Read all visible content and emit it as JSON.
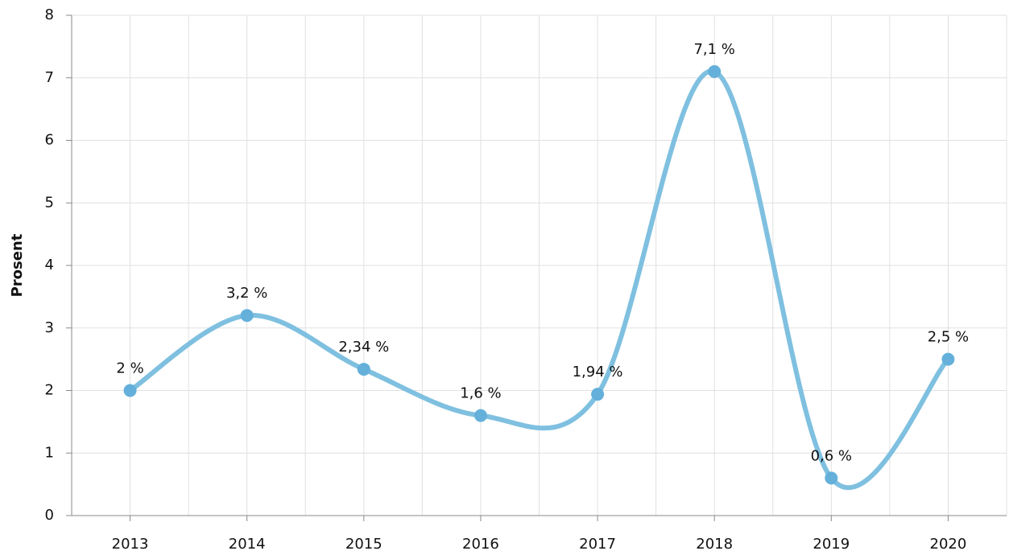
{
  "chart_data": {
    "type": "line",
    "y_label": "Prosent",
    "categories": [
      "2013",
      "2014",
      "2015",
      "2016",
      "2017",
      "2018",
      "2019",
      "2020"
    ],
    "values": [
      2,
      3.2,
      2.34,
      1.6,
      1.94,
      7.1,
      0.6,
      2.5
    ],
    "value_labels": [
      "2 %",
      "3,2 %",
      "2,34 %",
      "1,6 %",
      "1,94 %",
      "7,1 %",
      "0,6 %",
      "2,5 %"
    ],
    "color": "#7fc0e0",
    "marker_color": "#64b0da",
    "ylim": [
      0,
      8
    ],
    "yticks": [
      0,
      1,
      2,
      3,
      4,
      5,
      6,
      7,
      8
    ],
    "grid": true,
    "smooth": true
  }
}
